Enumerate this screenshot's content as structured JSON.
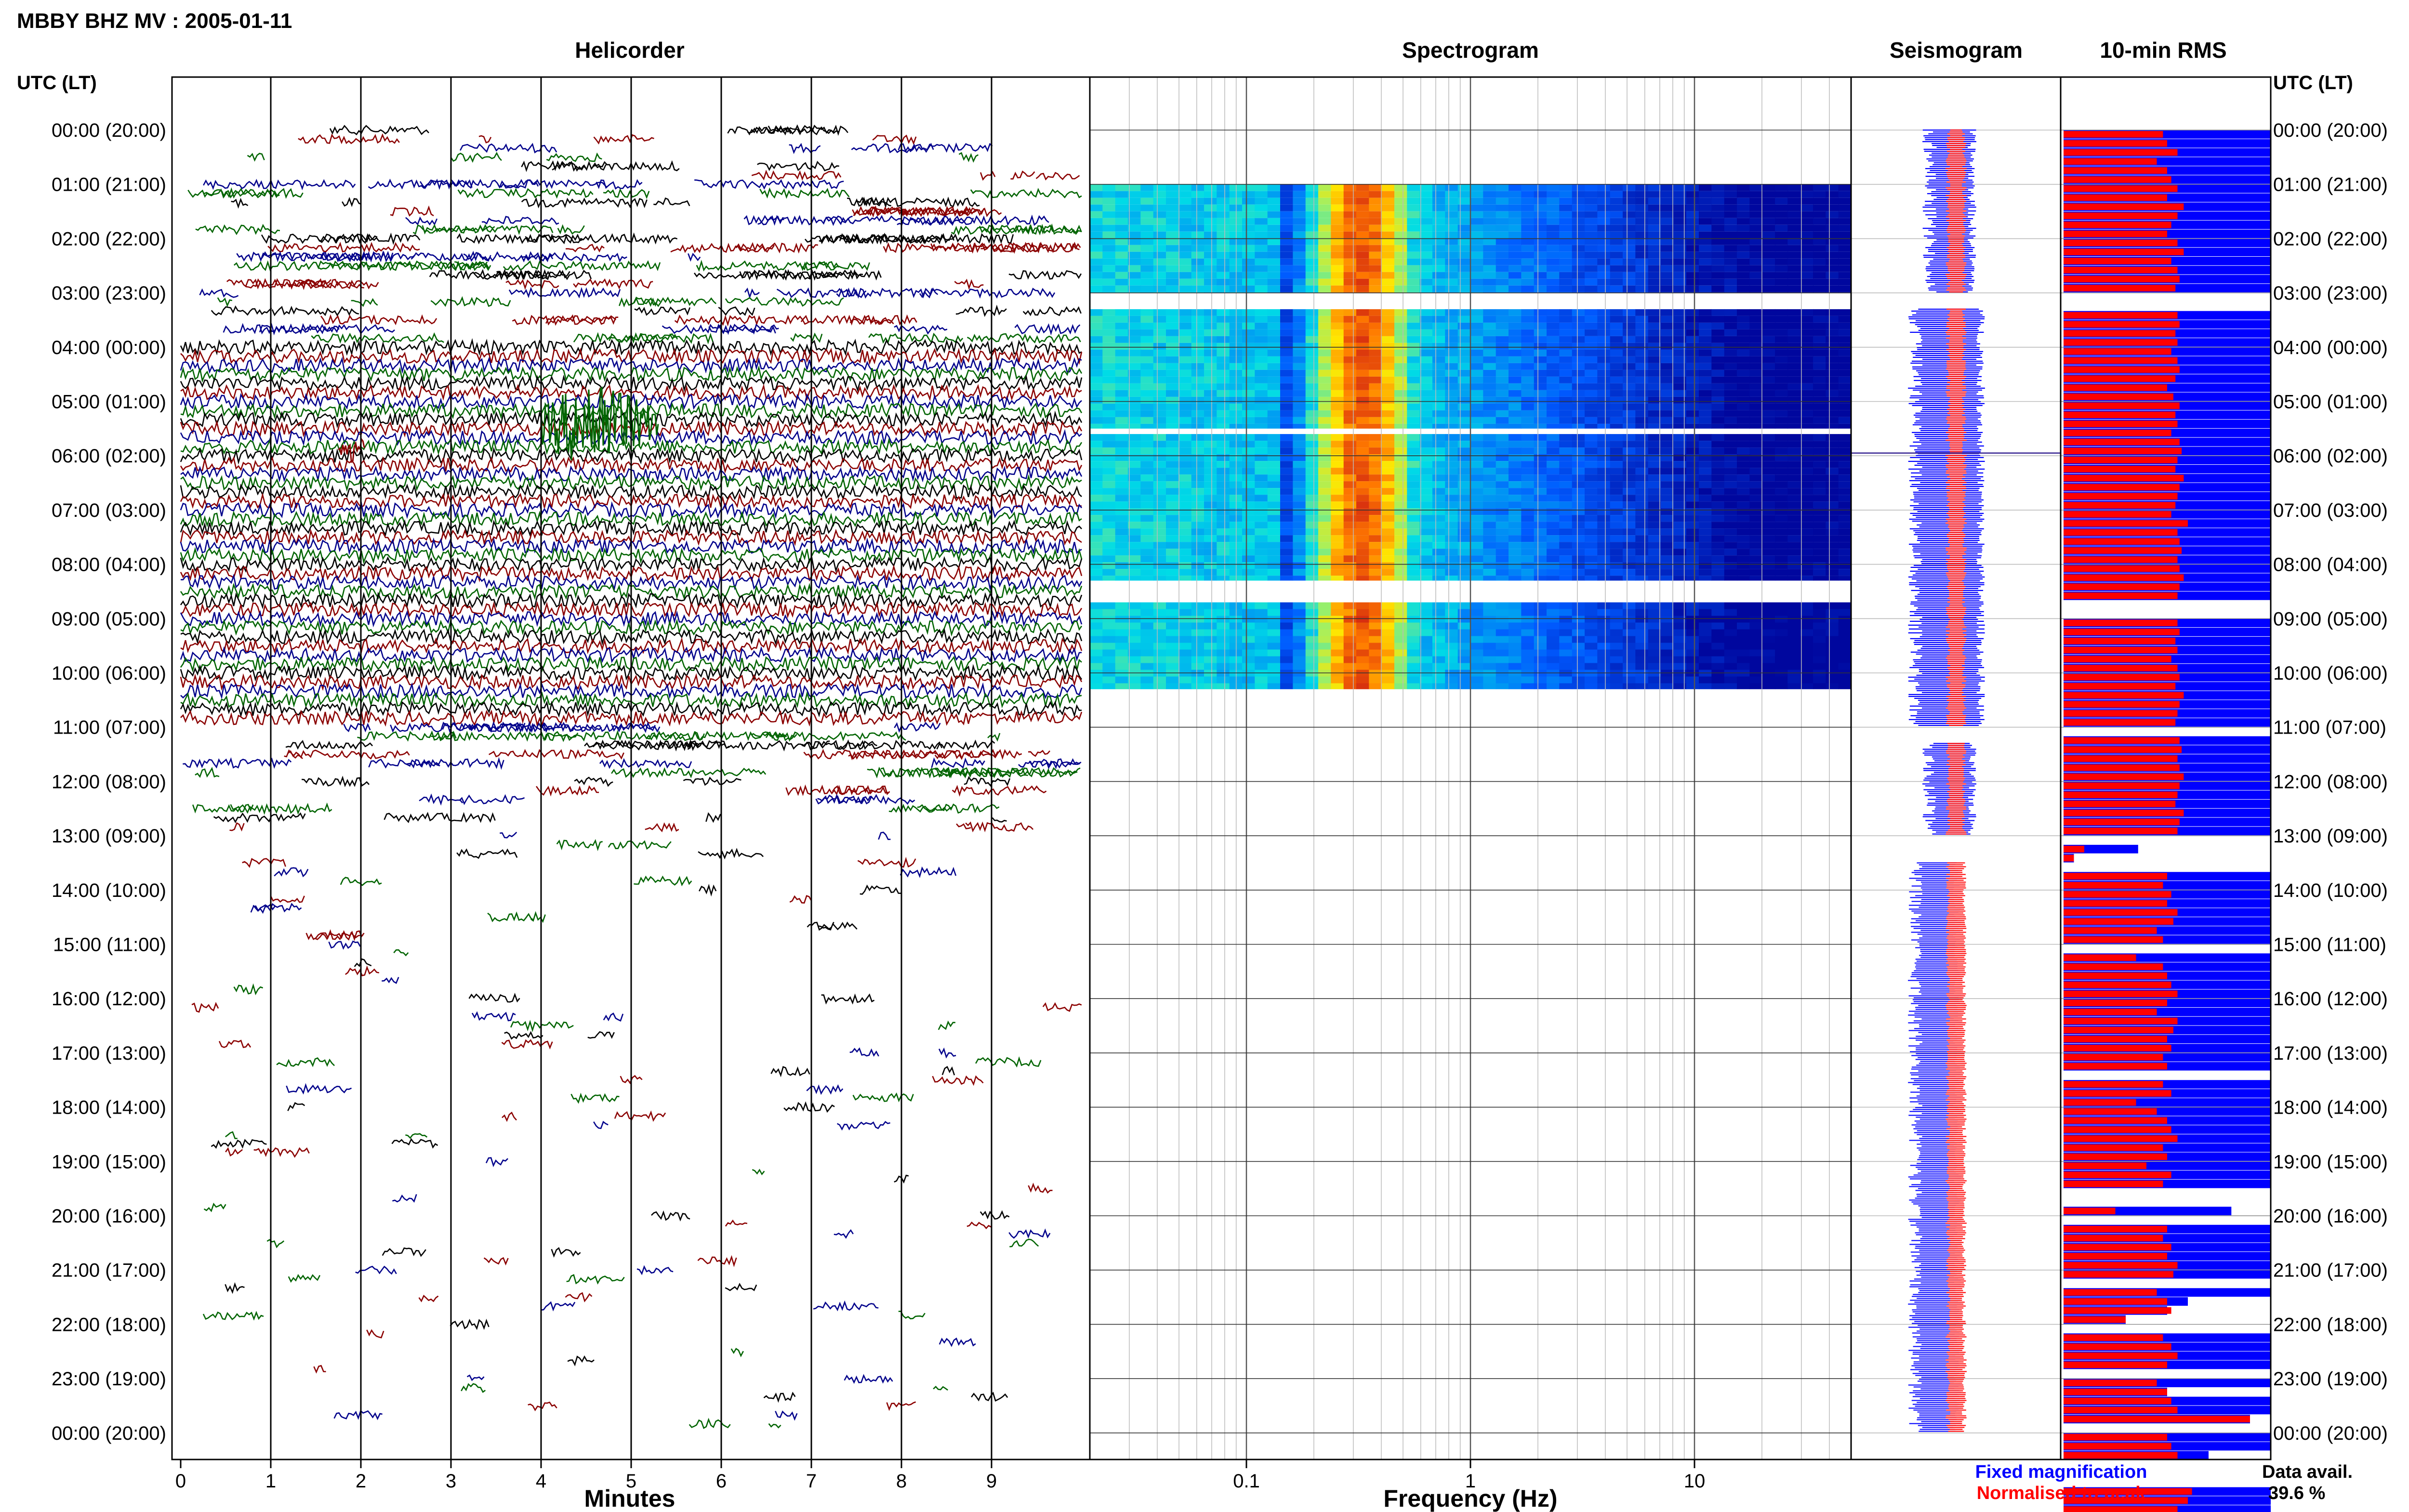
{
  "page": {
    "title": "MBBY BHZ MV : 2005-01-11",
    "utc_header_left": "UTC (LT)",
    "utc_header_right": "UTC (LT)",
    "hour_labels": [
      "00:00 (20:00)",
      "01:00 (21:00)",
      "02:00 (22:00)",
      "03:00 (23:00)",
      "04:00 (00:00)",
      "05:00 (01:00)",
      "06:00 (02:00)",
      "07:00 (03:00)",
      "08:00 (04:00)",
      "09:00 (05:00)",
      "10:00 (06:00)",
      "11:00 (07:00)",
      "12:00 (08:00)",
      "13:00 (09:00)",
      "14:00 (10:00)",
      "15:00 (11:00)",
      "16:00 (12:00)",
      "17:00 (13:00)",
      "18:00 (14:00)",
      "19:00 (15:00)",
      "20:00 (16:00)",
      "21:00 (17:00)",
      "22:00 (18:00)",
      "23:00 (19:00)",
      "00:00 (20:00)"
    ],
    "legend": {
      "fixed": "Fixed magnification",
      "normalised": "Normalised to peak",
      "avail_label": "Data avail.",
      "avail_value": "39.6 %"
    },
    "colors": {
      "black": "#000000",
      "red": "#8b0000",
      "blue": "#00008b",
      "green": "#006400",
      "rms_blue": "#0000ff",
      "rms_red": "#ff0000"
    }
  },
  "chart_data": [
    {
      "type": "line",
      "title": "Helicorder",
      "xlabel": "Minutes",
      "xlim": [
        0,
        10
      ],
      "xticks": [
        "0",
        "1",
        "2",
        "3",
        "4",
        "5",
        "6",
        "7",
        "8",
        "9"
      ],
      "trace_color_cycle": [
        "black",
        "red",
        "blue",
        "green"
      ],
      "coverage_by_hour": [
        0.55,
        0.8,
        0.9,
        0.75,
        1,
        1,
        1,
        1,
        1,
        1,
        1,
        0.85,
        0.55,
        0.3,
        0.25,
        0.15,
        0.3,
        0.3,
        0.25,
        0.08,
        0.2,
        0.3,
        0.15,
        0.2
      ]
    },
    {
      "type": "heatmap",
      "title": "Spectrogram",
      "xlabel": "Frequency (Hz)",
      "xscale": "log",
      "xlim": [
        0.02,
        50
      ],
      "xticks": [
        "0.1",
        "1",
        "10"
      ],
      "peak_band_hz": [
        0.2,
        0.5
      ],
      "data_hours": [
        [
          1,
          3
        ],
        [
          3.3,
          5.5
        ],
        [
          5.6,
          8.3
        ],
        [
          8.7,
          10.3
        ]
      ]
    },
    {
      "type": "bar",
      "title": "Seismogram",
      "series": [
        {
          "name": "Fixed magnification",
          "color": "#0000ff"
        },
        {
          "name": "Normalised to peak",
          "color": "#ff0000"
        }
      ],
      "data_hours": [
        [
          0,
          3
        ],
        [
          3.3,
          11
        ],
        [
          11.3,
          13
        ],
        [
          13.5,
          24
        ]
      ]
    },
    {
      "type": "bar",
      "title": "10-min RMS",
      "bin_minutes": 10,
      "blue_fraction": [
        1,
        1,
        1,
        1,
        1,
        1,
        1,
        1,
        1,
        1,
        1,
        1,
        1,
        1,
        1,
        1,
        1,
        1,
        0,
        0,
        1,
        1,
        1,
        1,
        1,
        1,
        1,
        1,
        1,
        1,
        1,
        1,
        1,
        1,
        1,
        1,
        1,
        1,
        1,
        1,
        1,
        1,
        1,
        1,
        1,
        1,
        1,
        1,
        1,
        1,
        1,
        1,
        0,
        0,
        1,
        1,
        1,
        1,
        1,
        1,
        1,
        1,
        1,
        1,
        1,
        1,
        0,
        1,
        1,
        1,
        1,
        1,
        1,
        1,
        1,
        1,
        1,
        1,
        0,
        0.36,
        0.05,
        0,
        1,
        1,
        1,
        1,
        1,
        1,
        1,
        1,
        0,
        1,
        1,
        1,
        1,
        1,
        1,
        1,
        1,
        1,
        1,
        1,
        1,
        1,
        0,
        1,
        1,
        1,
        1,
        1,
        1,
        1,
        1,
        1,
        1,
        1,
        1,
        0,
        0,
        0.81,
        0,
        1,
        1,
        1,
        1,
        1,
        1,
        0,
        1,
        0.6,
        0.5,
        0.3,
        0,
        1,
        1,
        1,
        1,
        0,
        1,
        0.5,
        1,
        1,
        0.9,
        0,
        1,
        1,
        0.7,
        0,
        0,
        0,
        1,
        1,
        1,
        1,
        1,
        1,
        1,
        0
      ],
      "red_fraction": [
        0.48,
        0.5,
        0.55,
        0.45,
        0.5,
        0.52,
        0.55,
        0.5,
        0.58,
        0.55,
        0.52,
        0.5,
        0.55,
        0.58,
        0.52,
        0.55,
        0.56,
        0.54,
        0,
        0,
        0.55,
        0.56,
        0.54,
        0.55,
        0.52,
        0.55,
        0.56,
        0.54,
        0.5,
        0.53,
        0.56,
        0.54,
        0.55,
        0.52,
        0.56,
        0.57,
        0.55,
        0.54,
        0.58,
        0.56,
        0.55,
        0.54,
        0.52,
        0.6,
        0.55,
        0.56,
        0.57,
        0.55,
        0.56,
        0.58,
        0.56,
        0.55,
        0,
        0,
        0.55,
        0.56,
        0.54,
        0.55,
        0.52,
        0.55,
        0.56,
        0.54,
        0.58,
        0.56,
        0.55,
        0.54,
        0,
        0.56,
        0.57,
        0.55,
        0.56,
        0.58,
        0.56,
        0.55,
        0.54,
        0.58,
        0.56,
        0.55,
        0,
        0.1,
        0.05,
        0,
        0.5,
        0.48,
        0.52,
        0.5,
        0.55,
        0.53,
        0.45,
        0.48,
        0,
        0.35,
        0.48,
        0.5,
        0.52,
        0.55,
        0.5,
        0.45,
        0.55,
        0.53,
        0.5,
        0.52,
        0.48,
        0.5,
        0,
        0.48,
        0.52,
        0.35,
        0.45,
        0.5,
        0.52,
        0.55,
        0.48,
        0.5,
        0.4,
        0.52,
        0.48,
        0,
        0,
        0.25,
        0,
        0.5,
        0.48,
        0.52,
        0.5,
        0.55,
        0.53,
        0,
        0.45,
        0.5,
        0.52,
        0.3,
        0,
        0.48,
        0.52,
        0.55,
        0.5,
        0,
        0.45,
        0.5,
        0.52,
        0.55,
        0.9,
        0,
        0.5,
        0.52,
        0.55,
        0,
        0,
        0,
        0.62,
        0.6,
        0.55,
        0.58,
        0.6,
        0.55,
        0.72,
        0
      ]
    }
  ]
}
